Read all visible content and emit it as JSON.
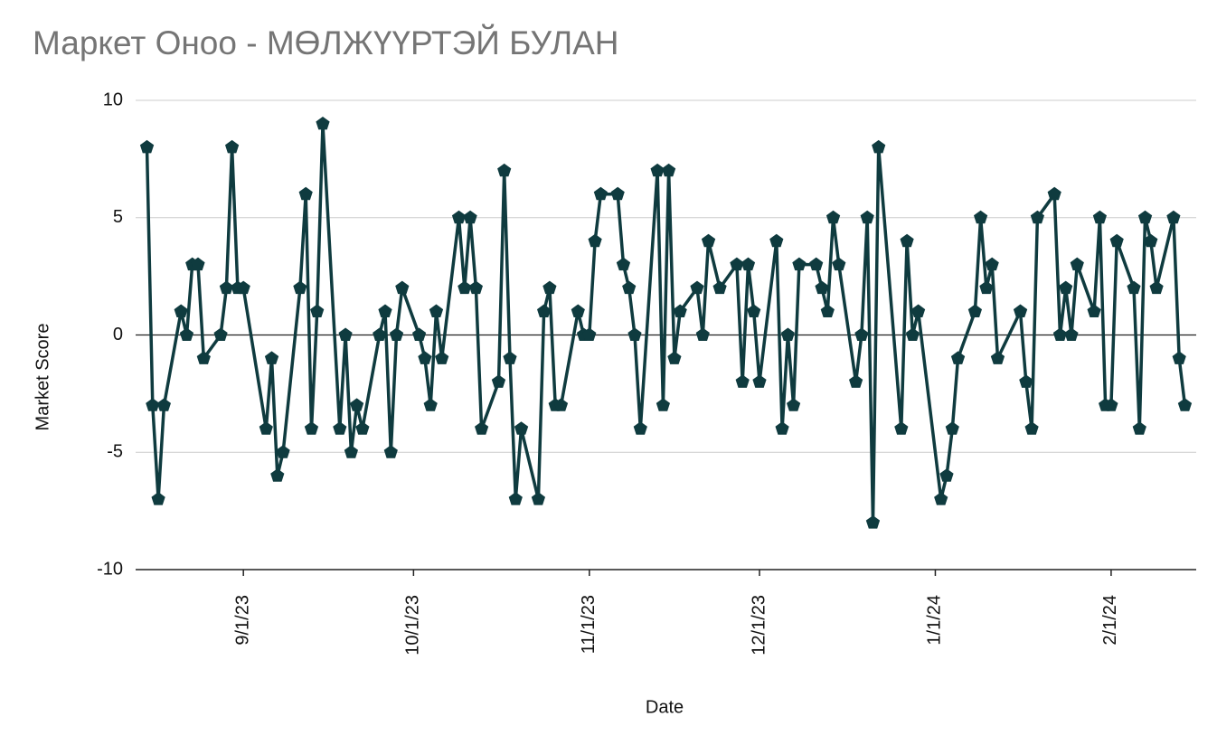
{
  "chart_data": {
    "type": "line",
    "title": "Маркет Оноо - МӨЛЖҮҮРТЭЙ БУЛАН",
    "x_label": "Date",
    "y_label": "Market Score",
    "x": [
      "8/15/23",
      "8/16/23",
      "8/17/23",
      "8/18/23",
      "8/21/23",
      "8/22/23",
      "8/23/23",
      "8/24/23",
      "8/25/23",
      "8/28/23",
      "8/29/23",
      "8/30/23",
      "8/31/23",
      "9/1/23",
      "9/5/23",
      "9/6/23",
      "9/7/23",
      "9/8/23",
      "9/11/23",
      "9/12/23",
      "9/13/23",
      "9/14/23",
      "9/15/23",
      "9/18/23",
      "9/19/23",
      "9/20/23",
      "9/21/23",
      "9/22/23",
      "9/25/23",
      "9/26/23",
      "9/27/23",
      "9/28/23",
      "9/29/23",
      "10/2/23",
      "10/3/23",
      "10/4/23",
      "10/5/23",
      "10/6/23",
      "10/9/23",
      "10/10/23",
      "10/11/23",
      "10/12/23",
      "10/13/23",
      "10/16/23",
      "10/17/23",
      "10/18/23",
      "10/19/23",
      "10/20/23",
      "10/23/23",
      "10/24/23",
      "10/25/23",
      "10/26/23",
      "10/27/23",
      "10/30/23",
      "10/31/23",
      "11/1/23",
      "11/2/23",
      "11/3/23",
      "11/6/23",
      "11/7/23",
      "11/8/23",
      "11/9/23",
      "11/10/23",
      "11/13/23",
      "11/14/23",
      "11/15/23",
      "11/16/23",
      "11/17/23",
      "11/20/23",
      "11/21/23",
      "11/22/23",
      "11/24/23",
      "11/27/23",
      "11/28/23",
      "11/29/23",
      "11/30/23",
      "12/1/23",
      "12/4/23",
      "12/5/23",
      "12/6/23",
      "12/7/23",
      "12/8/23",
      "12/11/23",
      "12/12/23",
      "12/13/23",
      "12/14/23",
      "12/15/23",
      "12/18/23",
      "12/19/23",
      "12/20/23",
      "12/21/23",
      "12/22/23",
      "12/26/23",
      "12/27/23",
      "12/28/23",
      "12/29/23",
      "1/2/24",
      "1/3/24",
      "1/4/24",
      "1/5/24",
      "1/8/24",
      "1/9/24",
      "1/10/24",
      "1/11/24",
      "1/12/24",
      "1/16/24",
      "1/17/24",
      "1/18/24",
      "1/19/24",
      "1/22/24",
      "1/23/24",
      "1/24/24",
      "1/25/24",
      "1/26/24",
      "1/29/24",
      "1/30/24",
      "1/31/24",
      "2/1/24",
      "2/2/24",
      "2/5/24",
      "2/6/24",
      "2/7/24",
      "2/8/24",
      "2/9/24",
      "2/12/24",
      "2/13/24",
      "2/14/24"
    ],
    "series": [
      {
        "name": "Market Score",
        "color": "#0f3b3f",
        "values": [
          8,
          -3,
          -7,
          -3,
          1,
          0,
          3,
          3,
          -1,
          0,
          2,
          8,
          2,
          2,
          -4,
          -1,
          -6,
          -5,
          2,
          6,
          -4,
          1,
          9,
          -4,
          0,
          -5,
          -3,
          -4,
          0,
          1,
          -5,
          0,
          2,
          0,
          -1,
          -3,
          1,
          -1,
          5,
          2,
          5,
          2,
          -4,
          -2,
          7,
          -1,
          -7,
          -4,
          -7,
          1,
          2,
          -3,
          -3,
          1,
          0,
          0,
          4,
          6,
          6,
          3,
          2,
          0,
          -4,
          7,
          -3,
          7,
          -1,
          1,
          2,
          0,
          4,
          2,
          3,
          -2,
          3,
          1,
          -2,
          4,
          -4,
          0,
          -3,
          3,
          3,
          2,
          1,
          5,
          3,
          -2,
          0,
          5,
          -8,
          8,
          -4,
          4,
          0,
          1,
          -7,
          -6,
          -4,
          -1,
          1,
          5,
          2,
          3,
          -1,
          1,
          -2,
          -4,
          5,
          6,
          0,
          2,
          0,
          3,
          1,
          5,
          -3,
          -3,
          4,
          2,
          -4,
          5,
          4,
          2,
          5,
          -1,
          -3
        ]
      }
    ],
    "xlim": [
      "8/13/23",
      "2/16/24"
    ],
    "xticks": [
      "9/1/23",
      "10/1/23",
      "11/1/23",
      "12/1/23",
      "1/1/24",
      "2/1/24"
    ],
    "ylim": [
      -10,
      10
    ],
    "yticks": [
      -10,
      -5,
      0,
      5,
      10
    ],
    "grid": true
  }
}
